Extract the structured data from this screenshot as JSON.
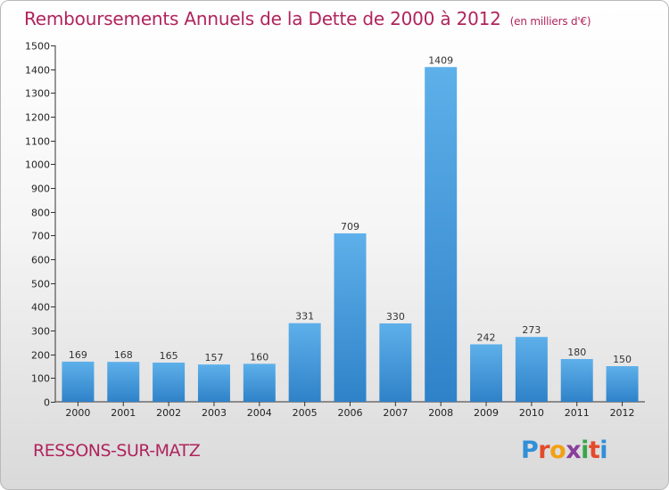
{
  "header": {
    "title": "Remboursements Annuels de la Dette de 2000 à 2012",
    "unit": "(en milliers d'€)"
  },
  "footer": {
    "commune": "RESSONS-SUR-MATZ",
    "logo_letters": [
      "P",
      "r",
      "o",
      "x",
      "i",
      "t",
      "i"
    ]
  },
  "colors": {
    "title": "#b0245c",
    "bar_light": "#5eb0ea",
    "bar_dark": "#2f82c8"
  },
  "chart_data": {
    "type": "bar",
    "title": "Remboursements Annuels de la Dette de 2000 à 2012",
    "subtitle": "(en milliers d'€)",
    "categories": [
      "2000",
      "2001",
      "2002",
      "2003",
      "2004",
      "2005",
      "2006",
      "2007",
      "2008",
      "2009",
      "2010",
      "2011",
      "2012"
    ],
    "values": [
      169,
      168,
      165,
      157,
      160,
      331,
      709,
      330,
      1409,
      242,
      273,
      180,
      150
    ],
    "ylim": [
      0,
      1500
    ],
    "yticks": [
      0,
      100,
      200,
      300,
      400,
      500,
      600,
      700,
      800,
      900,
      1000,
      1100,
      1200,
      1300,
      1400,
      1500
    ],
    "grid": false,
    "legend": "none"
  }
}
